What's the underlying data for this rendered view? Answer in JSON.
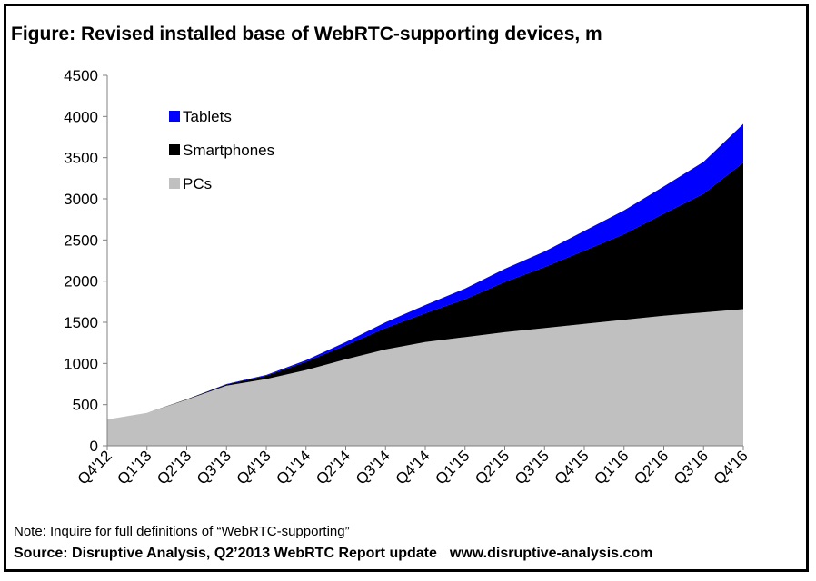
{
  "chart_data": {
    "type": "area",
    "stacked": true,
    "title": "Figure: Revised installed base of WebRTC-supporting devices, m",
    "categories": [
      "Q4'12",
      "Q1'13",
      "Q2'13",
      "Q3'13",
      "Q4'13",
      "Q1'14",
      "Q2'14",
      "Q3'14",
      "Q4'14",
      "Q1'15",
      "Q2'15",
      "Q3'15",
      "Q4'15",
      "Q1'16",
      "Q2'16",
      "Q3'16",
      "Q4'16"
    ],
    "ylim": [
      0,
      4500
    ],
    "yticks": [
      0,
      500,
      1000,
      1500,
      2000,
      2500,
      3000,
      3500,
      4000,
      4500
    ],
    "grid": false,
    "legend_position": "top-left",
    "series": [
      {
        "name": "PCs",
        "color": "#c0c0c0",
        "values": [
          320,
          400,
          560,
          730,
          810,
          920,
          1050,
          1170,
          1260,
          1320,
          1380,
          1430,
          1480,
          1530,
          1580,
          1620,
          1660
        ]
      },
      {
        "name": "Smartphones",
        "color": "#000000",
        "values": [
          0,
          0,
          5,
          15,
          40,
          100,
          170,
          260,
          350,
          460,
          610,
          740,
          890,
          1040,
          1240,
          1440,
          1780
        ]
      },
      {
        "name": "Tablets",
        "color": "#0000ff",
        "values": [
          0,
          0,
          0,
          5,
          10,
          20,
          40,
          70,
          100,
          130,
          160,
          190,
          240,
          290,
          330,
          390,
          470
        ]
      }
    ]
  },
  "note": "Note: Inquire for full definitions of “WebRTC-supporting”",
  "source": "Source: Disruptive Analysis, Q2’2013 WebRTC Report update",
  "source_url": "www.disruptive-analysis.com"
}
